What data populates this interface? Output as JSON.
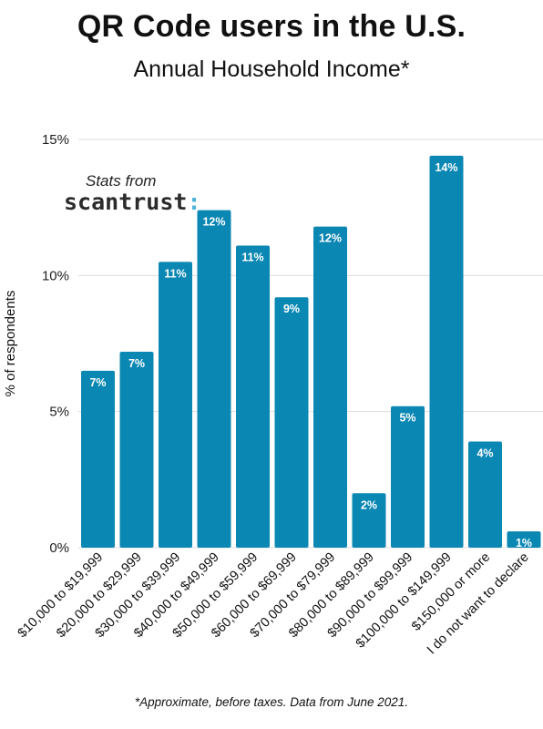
{
  "header": {
    "title": "QR Code users in the U.S.",
    "subtitle": "Annual Household Income*"
  },
  "brand": {
    "prefix": "Stats from",
    "name": "scantrust",
    "accent_mark": ":",
    "accent_color": "#4fb3d9"
  },
  "footnote": "*Approximate, before taxes. Data from June 2021.",
  "colors": {
    "bar": "#0b87b3",
    "grid": "#dddddd",
    "bar_label": "#ffffff"
  },
  "chart_data": {
    "type": "bar",
    "title": "QR Code users in the U.S.",
    "subtitle": "Annual Household Income*",
    "xlabel": "",
    "ylabel": "% of respondents",
    "ylim": [
      0,
      15
    ],
    "yticks": [
      0,
      5,
      10,
      15
    ],
    "ytick_labels": [
      "0%",
      "5%",
      "10%",
      "15%"
    ],
    "grid": true,
    "categories": [
      "$10,000 to $19,999",
      "$20,000 to $29,999",
      "$30,000 to $39,999",
      "$40,000 to $49,999",
      "$50,000 to $59,999",
      "$60,000 to $69,999",
      "$70,000 to $79,999",
      "$80,000 to $89,999",
      "$90,000 to $99,999",
      "$100,000 to $149,999",
      "$150,000 or more",
      "I do not want to declare"
    ],
    "values": [
      6.5,
      7.2,
      10.5,
      12.4,
      11.1,
      9.2,
      11.8,
      2.0,
      5.2,
      14.4,
      3.9,
      0.6
    ],
    "data_labels": [
      "7%",
      "7%",
      "11%",
      "12%",
      "11%",
      "9%",
      "12%",
      "2%",
      "5%",
      "14%",
      "4%",
      "1%"
    ]
  }
}
